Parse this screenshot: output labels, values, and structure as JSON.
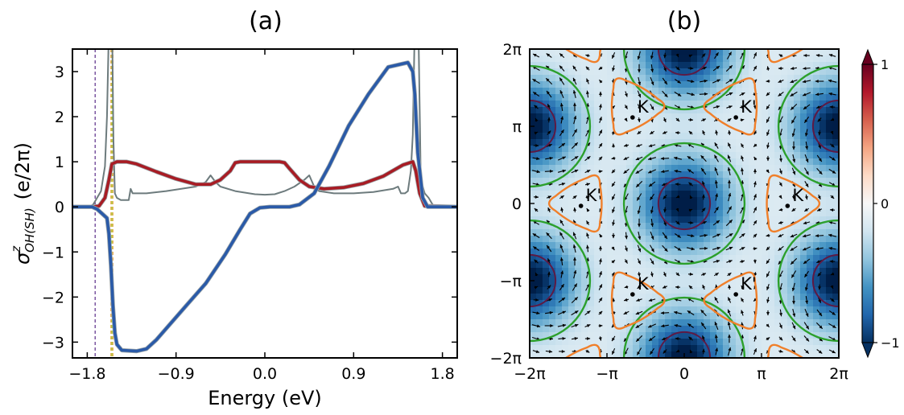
{
  "chart_data": [
    {
      "type": "line",
      "title": "(a)",
      "xlabel": "Energy (eV)",
      "ylabel": "σᶻ_OH(SH) (e/2π)",
      "ylabel_parts": {
        "sigma": "σ",
        "sup": "z",
        "sub": "OH(SH)",
        "unit": "(e/2π)"
      },
      "xlim": [
        -1.95,
        1.95
      ],
      "ylim": [
        -3.35,
        3.5
      ],
      "xticks": [
        -1.8,
        -0.9,
        0.0,
        0.9,
        1.8
      ],
      "xtick_labels": [
        "−1.8",
        "−0.9",
        "0.0",
        "0.9",
        "1.8"
      ],
      "yticks": [
        3,
        2,
        1,
        0,
        -1,
        -2,
        -3
      ],
      "ytick_labels": [
        "3",
        "2",
        "1",
        "0",
        "−1",
        "−2",
        "−3"
      ],
      "vlines": [
        {
          "x": -1.72,
          "color": "#5b2d8a"
        },
        {
          "x": -1.56,
          "color": "#e8a33d"
        },
        {
          "x": -1.55,
          "color": "#9acd32"
        },
        {
          "x": -1.54,
          "color": "#e8a33d"
        }
      ],
      "series": [
        {
          "color": "#2a5aa8",
          "x": [
            -1.95,
            -1.75,
            -1.7,
            -1.6,
            -1.58,
            -1.56,
            -1.54,
            -1.52,
            -1.5,
            -1.45,
            -1.3,
            -1.2,
            -1.1,
            -1.0,
            -0.8,
            -0.6,
            -0.4,
            -0.25,
            -0.15,
            -0.05,
            0.05,
            0.25,
            0.35,
            0.5,
            0.65,
            0.85,
            1.05,
            1.25,
            1.45,
            1.5,
            1.52,
            1.55,
            1.6,
            1.65,
            1.95
          ],
          "y": [
            0,
            0,
            -0.05,
            -0.25,
            -0.6,
            -1.3,
            -2.2,
            -2.8,
            -3.05,
            -3.18,
            -3.2,
            -3.15,
            -2.95,
            -2.7,
            -2.2,
            -1.7,
            -1.05,
            -0.5,
            -0.15,
            -0.02,
            0,
            0,
            0.05,
            0.3,
            0.9,
            1.8,
            2.5,
            3.1,
            3.2,
            3.0,
            2.5,
            1.2,
            0.2,
            0,
            0
          ]
        },
        {
          "color": "#a81c24",
          "x": [
            -1.95,
            -1.75,
            -1.68,
            -1.62,
            -1.58,
            -1.55,
            -1.5,
            -1.4,
            -1.3,
            -1.1,
            -0.9,
            -0.7,
            -0.55,
            -0.45,
            -0.35,
            -0.3,
            -0.25,
            0.15,
            0.2,
            0.25,
            0.35,
            0.45,
            0.6,
            0.8,
            1.0,
            1.2,
            1.4,
            1.5,
            1.53,
            1.57,
            1.62,
            1.95
          ],
          "y": [
            0,
            0,
            0.02,
            0.2,
            0.6,
            0.95,
            1.0,
            1.0,
            0.95,
            0.78,
            0.62,
            0.5,
            0.5,
            0.6,
            0.8,
            0.98,
            1.0,
            1.0,
            0.98,
            0.85,
            0.6,
            0.45,
            0.4,
            0.43,
            0.52,
            0.68,
            0.93,
            1.0,
            0.8,
            0.3,
            0.02,
            0
          ]
        },
        {
          "color": "#6d7b7d",
          "x": [
            -1.95,
            -1.78,
            -1.74,
            -1.7,
            -1.66,
            -1.62,
            -1.6,
            -1.585,
            -1.575,
            -1.565,
            -1.555,
            -1.545,
            -1.535,
            -1.52,
            -1.5,
            -1.46,
            -1.42,
            -1.38,
            -1.36,
            -1.34,
            -1.2,
            -1.0,
            -0.7,
            -0.6,
            -0.55,
            -0.5,
            -0.45,
            -0.3,
            -0.1,
            0.0,
            0.1,
            0.2,
            0.3,
            0.4,
            0.45,
            0.5,
            0.55,
            0.7,
            0.9,
            1.1,
            1.3,
            1.35,
            1.38,
            1.42,
            1.45,
            1.48,
            1.5,
            1.515,
            1.53,
            1.545,
            1.56,
            1.58,
            1.62,
            1.66,
            1.7,
            1.75,
            1.95
          ],
          "y": [
            0,
            0,
            0.05,
            0.2,
            0.35,
            0.9,
            2.0,
            3.5,
            3.5,
            3.5,
            3.5,
            3.5,
            1.5,
            0.3,
            0.2,
            0.15,
            0.15,
            0.15,
            0.4,
            0.3,
            0.3,
            0.35,
            0.45,
            0.55,
            0.7,
            0.55,
            0.45,
            0.35,
            0.28,
            0.27,
            0.28,
            0.35,
            0.45,
            0.6,
            0.7,
            0.45,
            0.35,
            0.3,
            0.3,
            0.33,
            0.4,
            0.45,
            0.3,
            0.3,
            0.35,
            0.8,
            1.6,
            3.5,
            3.5,
            3.5,
            3.5,
            0.6,
            0.3,
            0.2,
            0.05,
            0,
            0
          ]
        }
      ]
    },
    {
      "type": "heatmap",
      "title": "(b)",
      "xlim_label": [
        "−2π",
        "2π"
      ],
      "xtick_labels": [
        "−2π",
        "−π",
        "0",
        "π",
        "2π"
      ],
      "ytick_labels": [
        "2π",
        "π",
        "0",
        "−π",
        "−2π"
      ],
      "colorbar": {
        "ticks": [
          1,
          0,
          -1
        ],
        "tick_labels": [
          "1",
          "0",
          "−1"
        ],
        "range": [
          -1,
          1
        ],
        "colors": [
          "#053061",
          "#2166ac",
          "#4393c3",
          "#92c5de",
          "#d1e5f0",
          "#f7f7f7",
          "#fddbc7",
          "#f4a582",
          "#d6604d",
          "#b2182b",
          "#67001f"
        ]
      },
      "contour_colors": {
        "inner": "#5e1a44",
        "green": "#2ca02c",
        "orange": "#f07f2a"
      },
      "valley_labels": [
        "K",
        "K'",
        "K'",
        "K",
        "K",
        "K'"
      ]
    }
  ]
}
